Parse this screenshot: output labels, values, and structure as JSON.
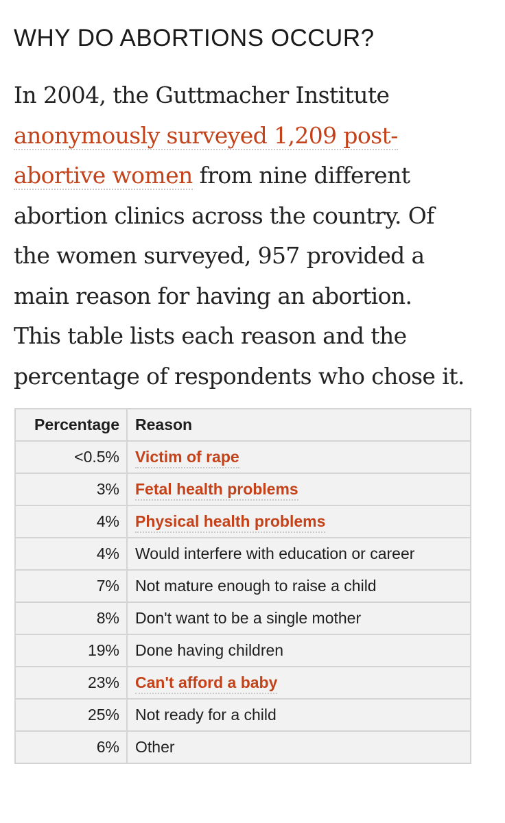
{
  "heading": "WHY DO ABORTIONS OCCUR?",
  "intro": {
    "line1": "In 2004, the Guttmacher Institute",
    "link_part1": "anonymously surveyed 1,209 post-",
    "link_part2": "abortive women",
    "line3_rest": " from nine different",
    "line4": "abortion clinics across the country. Of",
    "line5": "the women surveyed, 957 provided a",
    "line6": "main reason for having an abortion.",
    "line7": "This table lists each reason and the",
    "line8": "percentage of respondents who chose it."
  },
  "table": {
    "headers": {
      "percentage": "Percentage",
      "reason": "Reason"
    },
    "rows": [
      {
        "percentage": "<0.5%",
        "reason": "Victim of rape",
        "linked": true
      },
      {
        "percentage": "3%",
        "reason": "Fetal health problems",
        "linked": true
      },
      {
        "percentage": "4%",
        "reason": "Physical health problems",
        "linked": true
      },
      {
        "percentage": "4%",
        "reason": "Would interfere with education or career",
        "linked": false
      },
      {
        "percentage": "7%",
        "reason": "Not mature enough to raise a child",
        "linked": false
      },
      {
        "percentage": "8%",
        "reason": "Don't want to be a single mother",
        "linked": false
      },
      {
        "percentage": "19%",
        "reason": "Done having children",
        "linked": false
      },
      {
        "percentage": "23%",
        "reason": "Can't afford a baby",
        "linked": true
      },
      {
        "percentage": "25%",
        "reason": "Not ready for a child",
        "linked": false
      },
      {
        "percentage": "6%",
        "reason": "Other",
        "linked": false
      }
    ]
  },
  "colors": {
    "link": "#c4421a",
    "table_bg": "#f2f2f2",
    "table_border": "#d4d4d4",
    "text": "#1f1f1f"
  }
}
